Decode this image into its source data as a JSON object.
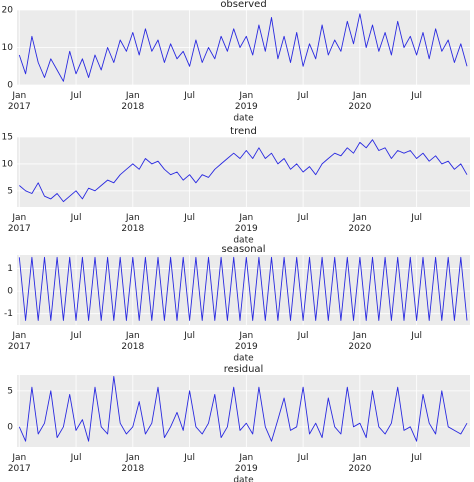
{
  "chart_data": [
    {
      "type": "line",
      "title": "observed",
      "xlabel": "date",
      "color": "#2a2ae0",
      "grid": true,
      "xlim": [
        2016.98,
        2020.97
      ],
      "ylim": [
        0,
        20
      ],
      "xticks": [
        {
          "value": 2017,
          "label": "Jan 2017"
        },
        {
          "value": 2017.5,
          "label": "Jul"
        },
        {
          "value": 2018,
          "label": "Jan 2018"
        },
        {
          "value": 2018.5,
          "label": "Jul"
        },
        {
          "value": 2019,
          "label": "Jan 2019"
        },
        {
          "value": 2019.5,
          "label": "Jul"
        },
        {
          "value": 2020,
          "label": "Jan 2020"
        },
        {
          "value": 2020.5,
          "label": "Jul"
        }
      ],
      "yticks": [
        0,
        10,
        20
      ],
      "x": [
        2017,
        2017.056,
        2017.111,
        2017.167,
        2017.222,
        2017.278,
        2017.333,
        2017.389,
        2017.444,
        2017.5,
        2017.556,
        2017.611,
        2017.667,
        2017.722,
        2017.778,
        2017.833,
        2017.889,
        2017.944,
        2018,
        2018.056,
        2018.111,
        2018.167,
        2018.222,
        2018.278,
        2018.333,
        2018.389,
        2018.444,
        2018.5,
        2018.556,
        2018.611,
        2018.667,
        2018.722,
        2018.778,
        2018.833,
        2018.889,
        2018.944,
        2019,
        2019.056,
        2019.111,
        2019.167,
        2019.222,
        2019.278,
        2019.333,
        2019.389,
        2019.444,
        2019.5,
        2019.556,
        2019.611,
        2019.667,
        2019.722,
        2019.778,
        2019.833,
        2019.889,
        2019.944,
        2020,
        2020.056,
        2020.111,
        2020.167,
        2020.222,
        2020.278,
        2020.333,
        2020.389,
        2020.444,
        2020.5,
        2020.556,
        2020.611,
        2020.667,
        2020.722,
        2020.778,
        2020.833,
        2020.889,
        2020.944
      ],
      "values": [
        8,
        3,
        13,
        6,
        2,
        7,
        4,
        1,
        9,
        3,
        7,
        2,
        8,
        4,
        10,
        6,
        12,
        9,
        14,
        8,
        15,
        9,
        12,
        6,
        11,
        7,
        9,
        5,
        12,
        6,
        10,
        7,
        13,
        9,
        15,
        10,
        13,
        8,
        16,
        9,
        18,
        7,
        13,
        6,
        14,
        5,
        11,
        7,
        16,
        8,
        12,
        9,
        17,
        11,
        19,
        10,
        16,
        9,
        14,
        8,
        17,
        10,
        13,
        8,
        14,
        7,
        15,
        9,
        12,
        6,
        11,
        5
      ]
    },
    {
      "type": "line",
      "title": "trend",
      "xlabel": "date",
      "color": "#2a2ae0",
      "grid": true,
      "xlim": [
        2016.98,
        2020.97
      ],
      "ylim": [
        2,
        15
      ],
      "xticks": [
        {
          "value": 2017,
          "label": "Jan 2017"
        },
        {
          "value": 2017.5,
          "label": "Jul"
        },
        {
          "value": 2018,
          "label": "Jan 2018"
        },
        {
          "value": 2018.5,
          "label": "Jul"
        },
        {
          "value": 2019,
          "label": "Jan 2019"
        },
        {
          "value": 2019.5,
          "label": "Jul"
        },
        {
          "value": 2020,
          "label": "Jan 2020"
        },
        {
          "value": 2020.5,
          "label": "Jul"
        }
      ],
      "yticks": [
        5,
        10,
        15
      ],
      "x": [
        2017,
        2017.056,
        2017.111,
        2017.167,
        2017.222,
        2017.278,
        2017.333,
        2017.389,
        2017.444,
        2017.5,
        2017.556,
        2017.611,
        2017.667,
        2017.722,
        2017.778,
        2017.833,
        2017.889,
        2017.944,
        2018,
        2018.056,
        2018.111,
        2018.167,
        2018.222,
        2018.278,
        2018.333,
        2018.389,
        2018.444,
        2018.5,
        2018.556,
        2018.611,
        2018.667,
        2018.722,
        2018.778,
        2018.833,
        2018.889,
        2018.944,
        2019,
        2019.056,
        2019.111,
        2019.167,
        2019.222,
        2019.278,
        2019.333,
        2019.389,
        2019.444,
        2019.5,
        2019.556,
        2019.611,
        2019.667,
        2019.722,
        2019.778,
        2019.833,
        2019.889,
        2019.944,
        2020,
        2020.056,
        2020.111,
        2020.167,
        2020.222,
        2020.278,
        2020.333,
        2020.389,
        2020.444,
        2020.5,
        2020.556,
        2020.611,
        2020.667,
        2020.722,
        2020.778,
        2020.833,
        2020.889,
        2020.944
      ],
      "values": [
        6,
        5,
        4.5,
        6.5,
        4,
        3.5,
        4.5,
        3,
        4,
        5,
        3.5,
        5.5,
        5,
        6,
        7,
        6.5,
        8,
        9,
        10,
        9,
        11,
        10,
        10.5,
        9,
        8,
        8.5,
        7,
        8,
        6.5,
        8,
        7.5,
        9,
        10,
        11,
        12,
        11,
        12.5,
        11,
        13,
        11,
        12,
        10,
        11,
        9,
        10,
        8.5,
        9.5,
        8,
        10,
        11,
        12,
        11.5,
        13,
        12,
        14,
        13,
        14.5,
        12.5,
        13,
        11,
        12.5,
        12,
        12.5,
        11,
        12,
        10.5,
        11.5,
        10,
        10.5,
        9,
        10,
        8
      ]
    },
    {
      "type": "line",
      "title": "seasonal",
      "xlabel": "date",
      "color": "#2a2ae0",
      "grid": true,
      "xlim": [
        2016.98,
        2020.97
      ],
      "ylim": [
        -1.5,
        1.6
      ],
      "xticks": [
        {
          "value": 2017,
          "label": "Jan 2017"
        },
        {
          "value": 2017.5,
          "label": "Jul"
        },
        {
          "value": 2018,
          "label": "Jan 2018"
        },
        {
          "value": 2018.5,
          "label": "Jul"
        },
        {
          "value": 2019,
          "label": "Jan 2019"
        },
        {
          "value": 2019.5,
          "label": "Jul"
        },
        {
          "value": 2020,
          "label": "Jan 2020"
        },
        {
          "value": 2020.5,
          "label": "Jul"
        }
      ],
      "yticks": [
        -1,
        0,
        1
      ],
      "x": [
        2017,
        2017.056,
        2017.111,
        2017.167,
        2017.222,
        2017.278,
        2017.333,
        2017.389,
        2017.444,
        2017.5,
        2017.556,
        2017.611,
        2017.667,
        2017.722,
        2017.778,
        2017.833,
        2017.889,
        2017.944,
        2018,
        2018.056,
        2018.111,
        2018.167,
        2018.222,
        2018.278,
        2018.333,
        2018.389,
        2018.444,
        2018.5,
        2018.556,
        2018.611,
        2018.667,
        2018.722,
        2018.778,
        2018.833,
        2018.889,
        2018.944,
        2019,
        2019.056,
        2019.111,
        2019.167,
        2019.222,
        2019.278,
        2019.333,
        2019.389,
        2019.444,
        2019.5,
        2019.556,
        2019.611,
        2019.667,
        2019.722,
        2019.778,
        2019.833,
        2019.889,
        2019.944,
        2020,
        2020.056,
        2020.111,
        2020.167,
        2020.222,
        2020.278,
        2020.333,
        2020.389,
        2020.444,
        2020.5,
        2020.556,
        2020.611,
        2020.667,
        2020.722,
        2020.778,
        2020.833,
        2020.889,
        2020.944
      ],
      "values": [
        1.5,
        -1.3,
        1.5,
        -1.3,
        1.5,
        -1.3,
        1.5,
        -1.3,
        1.5,
        -1.3,
        1.5,
        -1.3,
        1.5,
        -1.3,
        1.5,
        -1.3,
        1.5,
        -1.3,
        1.5,
        -1.3,
        1.5,
        -1.3,
        1.5,
        -1.3,
        1.5,
        -1.3,
        1.5,
        -1.3,
        1.5,
        -1.3,
        1.5,
        -1.3,
        1.5,
        -1.3,
        1.5,
        -1.3,
        1.5,
        -1.3,
        1.5,
        -1.3,
        1.5,
        -1.3,
        1.5,
        -1.3,
        1.5,
        -1.3,
        1.5,
        -1.3,
        1.5,
        -1.3,
        1.5,
        -1.3,
        1.5,
        -1.3,
        1.5,
        -1.3,
        1.5,
        -1.3,
        1.5,
        -1.3,
        1.5,
        -1.3,
        1.5,
        -1.3,
        1.5,
        -1.3,
        1.5,
        -1.3,
        1.5,
        -1.3,
        1.5,
        -1.3
      ]
    },
    {
      "type": "line",
      "title": "residual",
      "xlabel": "date",
      "color": "#2a2ae0",
      "grid": true,
      "xlim": [
        2016.98,
        2020.97
      ],
      "ylim": [
        -2.8,
        7.2
      ],
      "xticks": [
        {
          "value": 2017,
          "label": "Jan 2017"
        },
        {
          "value": 2017.5,
          "label": "Jul"
        },
        {
          "value": 2018,
          "label": "Jan 2018"
        },
        {
          "value": 2018.5,
          "label": "Jul"
        },
        {
          "value": 2019,
          "label": "Jan 2019"
        },
        {
          "value": 2019.5,
          "label": "Jul"
        },
        {
          "value": 2020,
          "label": "Jan 2020"
        },
        {
          "value": 2020.5,
          "label": "Jul"
        }
      ],
      "yticks": [
        0,
        5
      ],
      "x": [
        2017,
        2017.056,
        2017.111,
        2017.167,
        2017.222,
        2017.278,
        2017.333,
        2017.389,
        2017.444,
        2017.5,
        2017.556,
        2017.611,
        2017.667,
        2017.722,
        2017.778,
        2017.833,
        2017.889,
        2017.944,
        2018,
        2018.056,
        2018.111,
        2018.167,
        2018.222,
        2018.278,
        2018.333,
        2018.389,
        2018.444,
        2018.5,
        2018.556,
        2018.611,
        2018.667,
        2018.722,
        2018.778,
        2018.833,
        2018.889,
        2018.944,
        2019,
        2019.056,
        2019.111,
        2019.167,
        2019.222,
        2019.278,
        2019.333,
        2019.389,
        2019.444,
        2019.5,
        2019.556,
        2019.611,
        2019.667,
        2019.722,
        2019.778,
        2019.833,
        2019.889,
        2019.944,
        2020,
        2020.056,
        2020.111,
        2020.167,
        2020.222,
        2020.278,
        2020.333,
        2020.389,
        2020.444,
        2020.5,
        2020.556,
        2020.611,
        2020.667,
        2020.722,
        2020.778,
        2020.833,
        2020.889,
        2020.944
      ],
      "values": [
        0,
        -2,
        5.5,
        -1,
        0.5,
        5,
        -1.5,
        0,
        4.5,
        -0.5,
        1,
        -2,
        5.5,
        0,
        -1,
        7,
        0.5,
        -1,
        0,
        3.5,
        -1,
        0.5,
        5.5,
        -1.5,
        0,
        2,
        -0.5,
        5,
        0,
        -1,
        0.5,
        4.5,
        -1.5,
        0,
        5.5,
        -0.5,
        0.5,
        -1,
        5.5,
        0,
        -2,
        1,
        4,
        -0.5,
        0,
        5.5,
        -1,
        0.5,
        -1.5,
        4,
        0,
        -1,
        5.5,
        0,
        0.5,
        -1.5,
        5,
        0,
        -1,
        0.5,
        5.5,
        -0.5,
        0,
        -2,
        4.5,
        0.5,
        -1,
        5,
        0,
        -0.5,
        -1,
        0.5
      ]
    }
  ]
}
